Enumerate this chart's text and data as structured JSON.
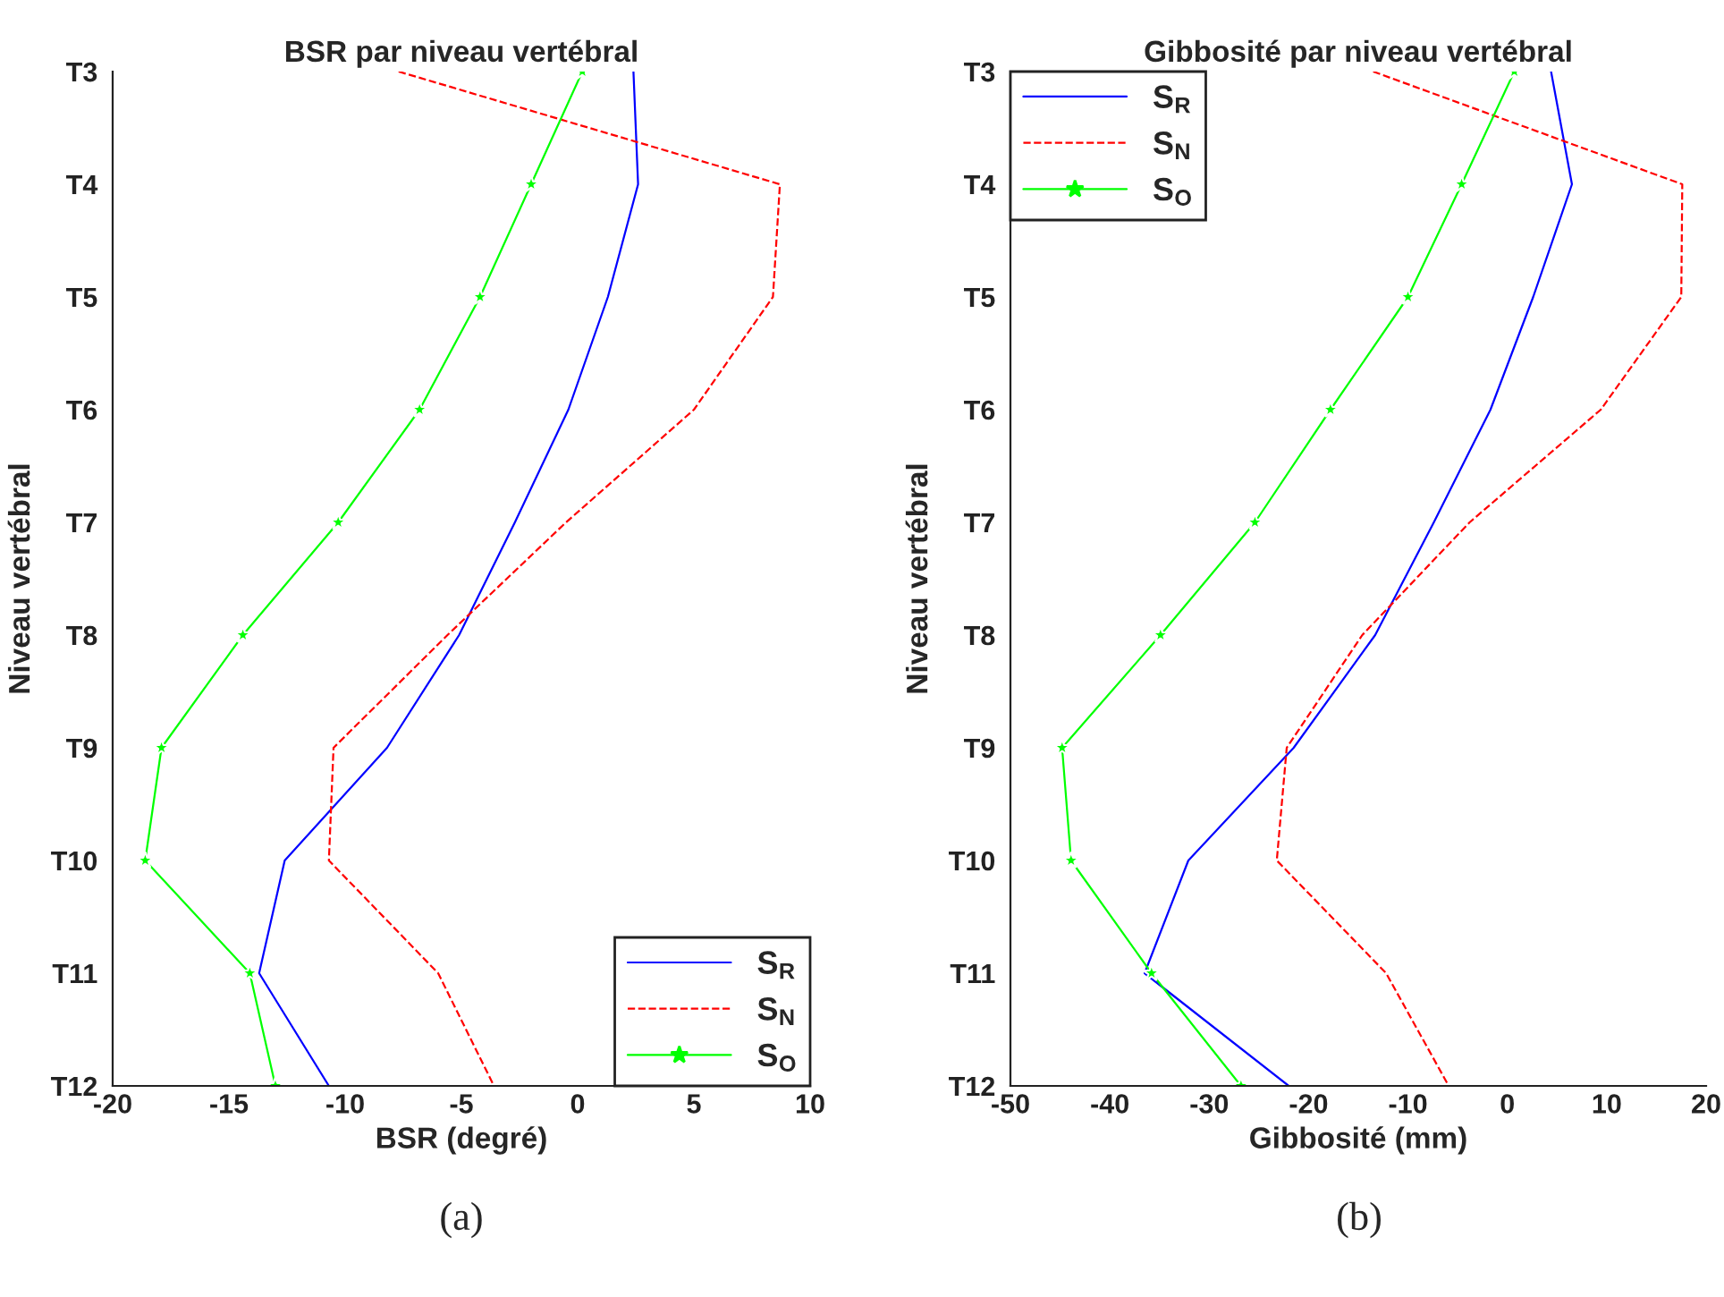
{
  "chart_data": [
    {
      "type": "line",
      "orientation": "horizontal",
      "title": "BSR par niveau vertébral",
      "xlabel": "BSR (degré)",
      "ylabel": "Niveau vertébral",
      "categories": [
        "T3",
        "T4",
        "T5",
        "T6",
        "T7",
        "T8",
        "T9",
        "T10",
        "T11",
        "T12"
      ],
      "xlim": [
        -20,
        10
      ],
      "xticks": [
        -20,
        -15,
        -10,
        -5,
        0,
        5,
        10
      ],
      "grid": false,
      "legend": "bottom right",
      "annotations": [
        "(a)"
      ],
      "series": [
        {
          "name": "S$_{R}$",
          "color": "#0000ff",
          "line_style": "solid",
          "marker": "none",
          "values": [
            2.4,
            2.6,
            1.3,
            -0.4,
            -2.7,
            -5.1,
            -8.2,
            -12.6,
            -13.7,
            -10.7
          ]
        },
        {
          "name": "S$_{N}$",
          "color": "#ff0000",
          "line_style": "dashed",
          "marker": "none",
          "values": [
            -7.7,
            8.7,
            8.4,
            5.0,
            -0.5,
            -5.6,
            -10.5,
            -10.7,
            -6.0,
            -3.6
          ]
        },
        {
          "name": "S$_{O}$",
          "color": "#00ff00",
          "line_style": "solid",
          "marker": "star",
          "values": [
            0.2,
            -2.0,
            -4.2,
            -6.8,
            -10.3,
            -14.4,
            -17.9,
            -18.6,
            -14.1,
            -13.0
          ]
        }
      ]
    },
    {
      "type": "line",
      "orientation": "horizontal",
      "title": "Gibbosité par niveau vertébral",
      "xlabel": "Gibbosité (mm)",
      "ylabel": "Niveau vertébral",
      "categories": [
        "T3",
        "T4",
        "T5",
        "T6",
        "T7",
        "T8",
        "T9",
        "T10",
        "T11",
        "T12"
      ],
      "xlim": [
        -50,
        20
      ],
      "xticks": [
        -50,
        -40,
        -30,
        -20,
        -10,
        0,
        10,
        20
      ],
      "grid": false,
      "legend": "top left",
      "annotations": [
        "(b)"
      ],
      "series": [
        {
          "name": "S$_{R}$",
          "color": "#0000ff",
          "line_style": "solid",
          "marker": "none",
          "values": [
            4.4,
            6.5,
            2.6,
            -1.7,
            -7.4,
            -13.3,
            -21.5,
            -32.1,
            -36.5,
            -22.0
          ]
        },
        {
          "name": "S$_{N}$",
          "color": "#ff0000",
          "line_style": "dashed",
          "marker": "none",
          "values": [
            -13.5,
            17.6,
            17.5,
            9.4,
            -3.8,
            -14.6,
            -22.2,
            -23.2,
            -12.2,
            -5.9
          ]
        },
        {
          "name": "S$_{O}$",
          "color": "#00ff00",
          "line_style": "solid",
          "marker": "star",
          "values": [
            0.7,
            -4.6,
            -10.0,
            -17.8,
            -25.4,
            -34.9,
            -44.8,
            -43.9,
            -35.8,
            -26.8
          ]
        }
      ]
    }
  ]
}
